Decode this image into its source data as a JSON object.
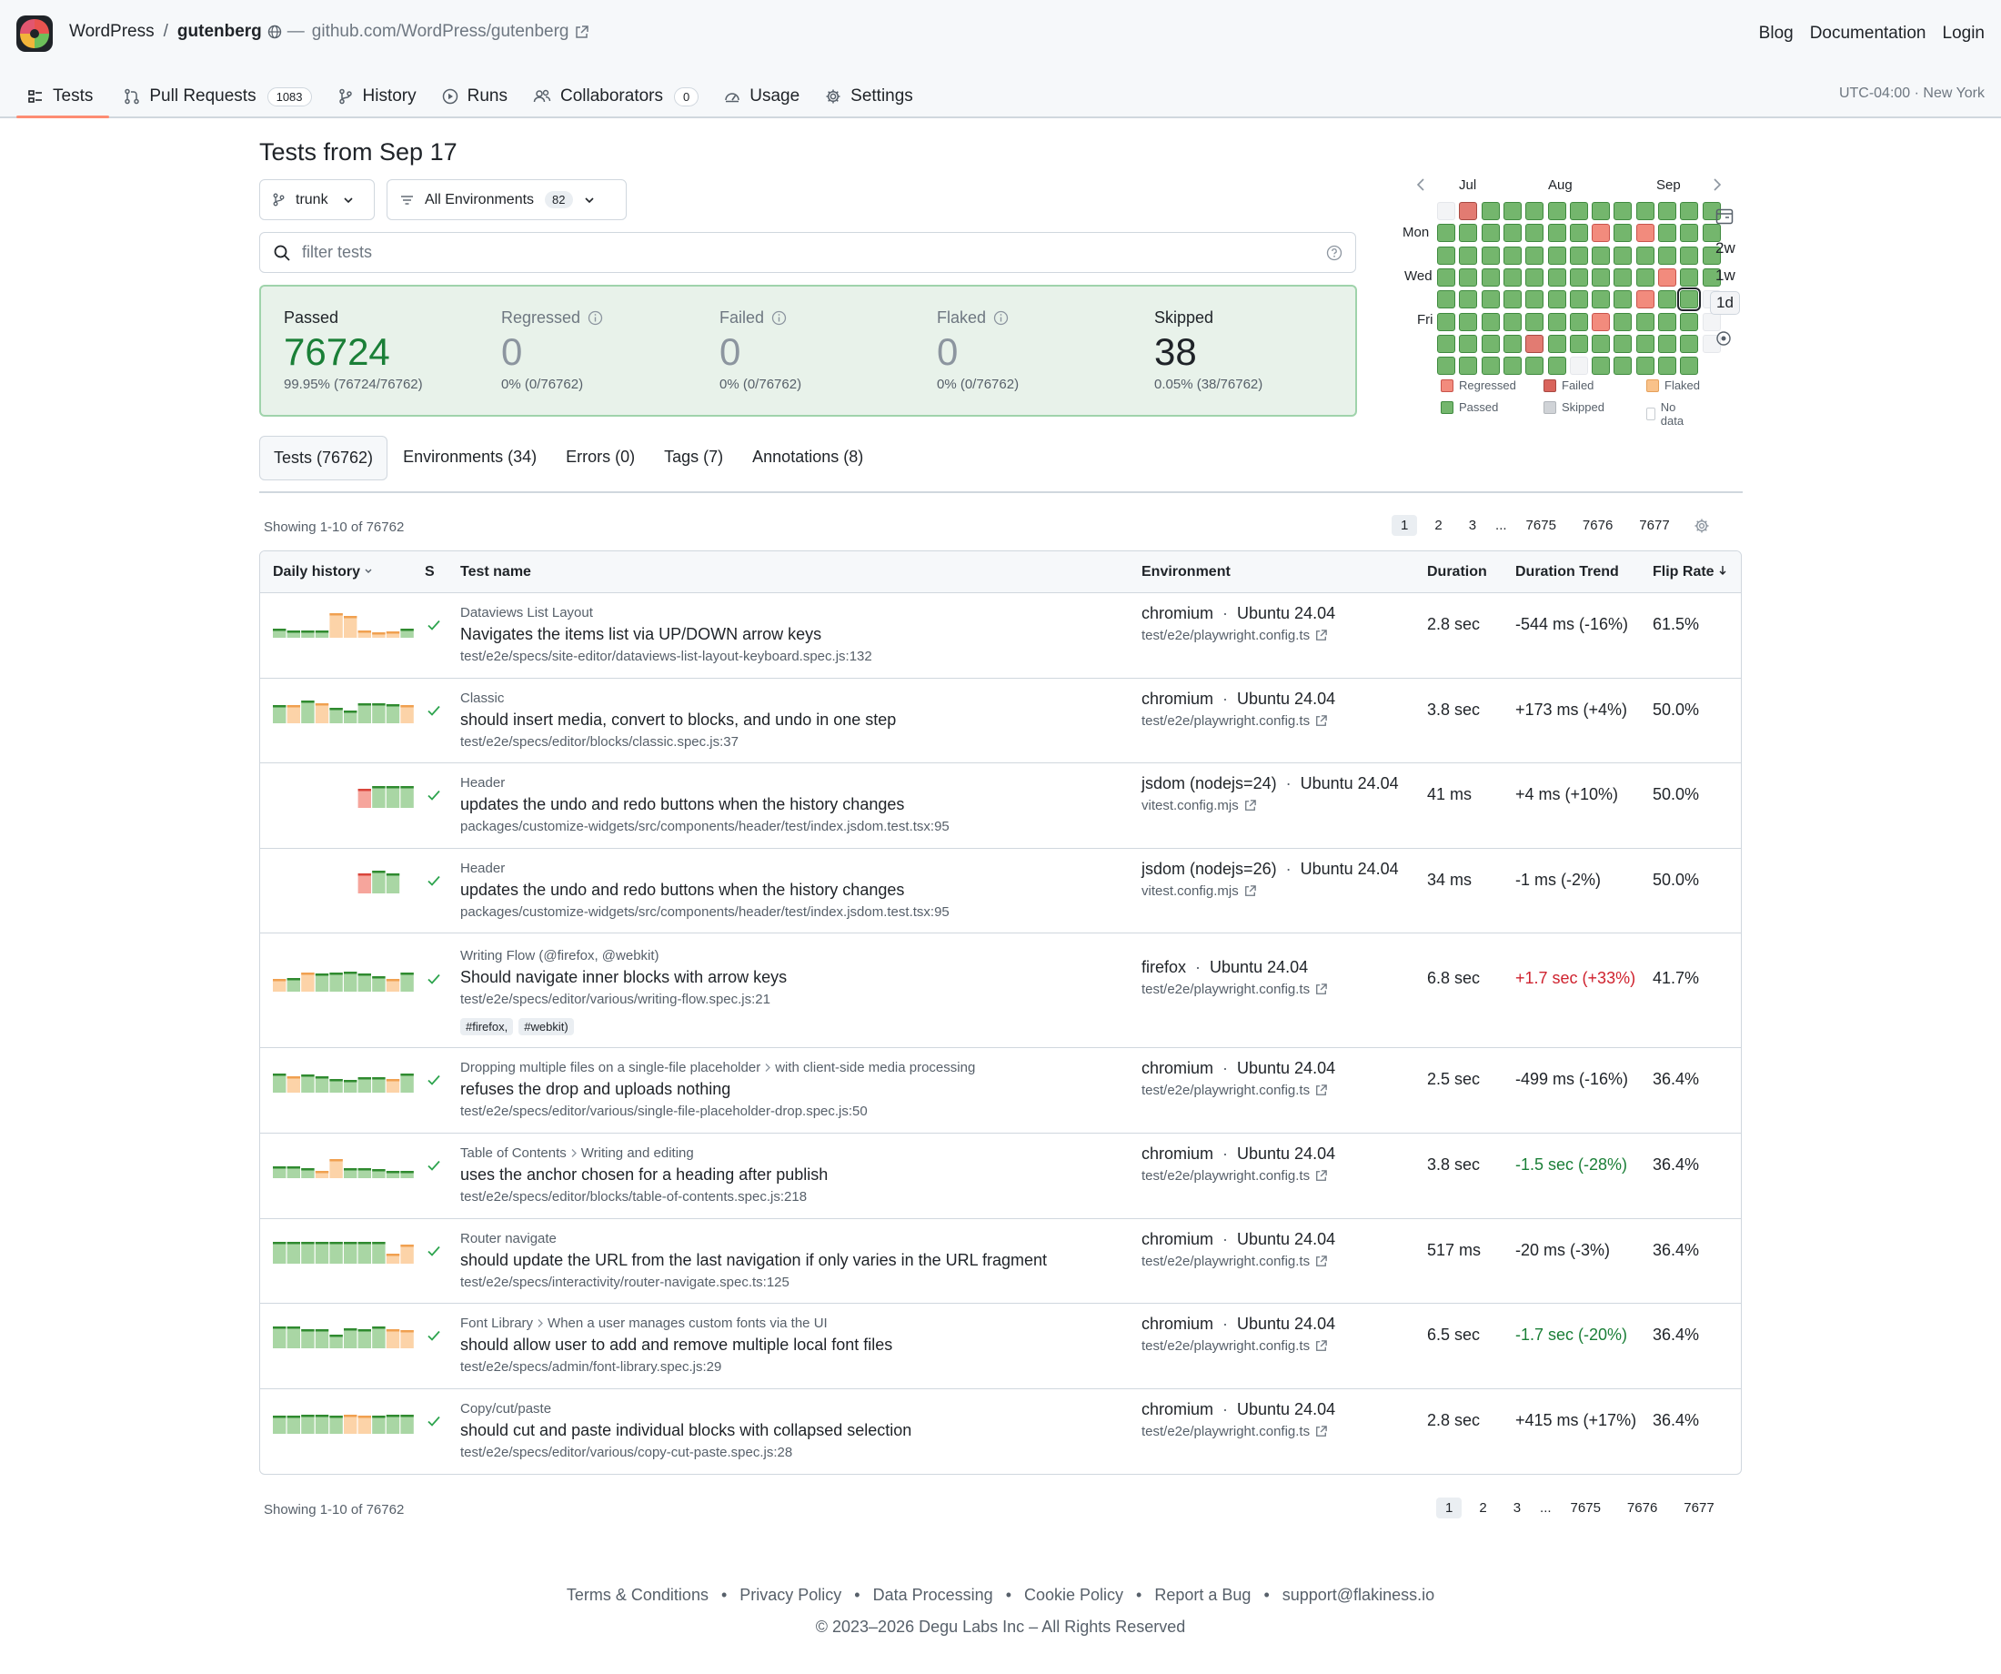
{
  "header": {
    "org": "WordPress",
    "separator": "/",
    "repo": "gutenberg",
    "dash": "—",
    "repo_url": "github.com/WordPress/gutenberg",
    "links": [
      "Blog",
      "Documentation",
      "Login"
    ]
  },
  "nav": {
    "items": [
      {
        "label": "Tests",
        "icon": "tests-icon",
        "active": true
      },
      {
        "label": "Pull Requests",
        "icon": "pull-request-icon",
        "count": "1083"
      },
      {
        "label": "History",
        "icon": "history-icon"
      },
      {
        "label": "Runs",
        "icon": "play-icon"
      },
      {
        "label": "Collaborators",
        "icon": "people-icon",
        "count": "0"
      },
      {
        "label": "Usage",
        "icon": "gauge-icon"
      },
      {
        "label": "Settings",
        "icon": "gear-icon"
      }
    ],
    "timezone": "UTC-04:00 · New York"
  },
  "main": {
    "title": "Tests from Sep 17",
    "branch": "trunk",
    "environments_label": "All Environments",
    "environments_count": "82",
    "search_placeholder": "filter tests"
  },
  "summary": {
    "passed": {
      "label": "Passed",
      "value": "76724",
      "detail": "99.95% (76724/76762)"
    },
    "regressed": {
      "label": "Regressed",
      "value": "0",
      "detail": "0% (0/76762)"
    },
    "failed": {
      "label": "Failed",
      "value": "0",
      "detail": "0% (0/76762)"
    },
    "flaked": {
      "label": "Flaked",
      "value": "0",
      "detail": "0% (0/76762)"
    },
    "skipped": {
      "label": "Skipped",
      "value": "38",
      "detail": "0.05% (38/76762)"
    }
  },
  "calendar": {
    "months": [
      "Jul",
      "Aug",
      "Sep"
    ],
    "days": [
      "Mon",
      "Wed",
      "Fri"
    ],
    "ranges": [
      "2w",
      "1w",
      "1d"
    ],
    "selected_range": "1d",
    "weeks": [
      [
        "n",
        "p",
        "p",
        "p",
        "p",
        "p",
        "p",
        "p"
      ],
      [
        "r",
        "p",
        "p",
        "p",
        "p",
        "p",
        "p",
        "p"
      ],
      [
        "p",
        "p",
        "p",
        "p",
        "p",
        "p",
        "p",
        "p"
      ],
      [
        "p",
        "p",
        "p",
        "p",
        "p",
        "p",
        "p",
        "p"
      ],
      [
        "p",
        "p",
        "p",
        "p",
        "p",
        "p",
        "r",
        "p"
      ],
      [
        "p",
        "p",
        "p",
        "p",
        "p",
        "p",
        "p",
        "p"
      ],
      [
        "p",
        "p",
        "p",
        "p",
        "p",
        "p",
        "p",
        "n"
      ],
      [
        "p",
        "f",
        "p",
        "p",
        "p",
        "f",
        "p",
        "p"
      ],
      [
        "p",
        "p",
        "p",
        "p",
        "p",
        "p",
        "p",
        "p"
      ],
      [
        "p",
        "f",
        "p",
        "p",
        "f",
        "p",
        "p",
        "p"
      ],
      [
        "p",
        "p",
        "p",
        "f",
        "p",
        "p",
        "p",
        "p"
      ],
      [
        "p",
        "p",
        "p",
        "p",
        "p",
        "p",
        "p",
        "p"
      ],
      [
        "p",
        "p",
        "p",
        "p",
        "s",
        "n",
        "n"
      ]
    ],
    "legend": [
      {
        "label": "Regressed",
        "color": "#f28b7d"
      },
      {
        "label": "Failed",
        "color": "#d9645c"
      },
      {
        "label": "Flaked",
        "color": "#f9c28a"
      },
      {
        "label": "Passed",
        "color": "#74b66d"
      },
      {
        "label": "Skipped",
        "color": "#d0d3d7"
      },
      {
        "label": "No data",
        "color": "#ffffff"
      }
    ]
  },
  "tabs": [
    "Tests (76762)",
    "Environments (34)",
    "Errors (0)",
    "Tags (7)",
    "Annotations (8)"
  ],
  "pagination": {
    "showing": "Showing 1-10 of 76762",
    "pages": [
      "1",
      "2",
      "3",
      "...",
      "7675",
      "7676",
      "7677"
    ],
    "current": "1"
  },
  "table": {
    "columns": {
      "history": "Daily history",
      "status": "S",
      "name": "Test name",
      "environment": "Environment",
      "duration": "Duration",
      "trend": "Duration Trend",
      "flip": "Flip Rate"
    },
    "rows": [
      {
        "suite": "Dataviews List Layout",
        "name": "Navigates the items list via UP/DOWN arrow keys",
        "path": "test/e2e/specs/site-editor/dataviews-list-layout-keyboard.spec.js:132",
        "env": "chromium",
        "os": "Ubuntu 24.04",
        "config": "test/e2e/playwright.config.ts",
        "duration": "2.8 sec",
        "trend": "-544 ms (-16%)",
        "trend_dir": "neutral",
        "flip": "61.5%",
        "history": [
          "p",
          "p",
          "p",
          "p",
          "k",
          "k",
          "k",
          "k",
          "k",
          "p"
        ],
        "heights": [
          0.35,
          0.3,
          0.3,
          0.3,
          0.95,
          0.85,
          0.3,
          0.2,
          0.25,
          0.35
        ]
      },
      {
        "suite": "Classic",
        "name": "should insert media, convert to blocks, and undo in one step",
        "path": "test/e2e/specs/editor/blocks/classic.spec.js:37",
        "env": "chromium",
        "os": "Ubuntu 24.04",
        "config": "test/e2e/playwright.config.ts",
        "duration": "3.8 sec",
        "trend": "+173 ms (+4%)",
        "trend_dir": "neutral",
        "flip": "50.0%",
        "history": [
          "p",
          "k",
          "p",
          "k",
          "p",
          "p",
          "p",
          "p",
          "p",
          "k"
        ],
        "heights": [
          0.7,
          0.7,
          0.9,
          0.8,
          0.6,
          0.5,
          0.8,
          0.8,
          0.75,
          0.7
        ]
      },
      {
        "suite": "Header",
        "name": "updates the undo and redo buttons when the history changes",
        "path": "packages/customize-widgets/src/components/header/test/index.jsdom.test.tsx:95",
        "env": "jsdom (nodejs=24)",
        "os": "Ubuntu 24.04",
        "config": "vitest.config.mjs",
        "duration": "41 ms",
        "trend": "+4 ms (+10%)",
        "trend_dir": "neutral",
        "flip": "50.0%",
        "history": [
          "",
          "",
          "",
          "",
          "",
          "",
          "f",
          "p",
          "p",
          "p"
        ],
        "heights": [
          0,
          0,
          0,
          0,
          0,
          0,
          0.75,
          0.85,
          0.85,
          0.85
        ]
      },
      {
        "suite": "Header",
        "name": "updates the undo and redo buttons when the history changes",
        "path": "packages/customize-widgets/src/components/header/test/index.jsdom.test.tsx:95",
        "env": "jsdom (nodejs=26)",
        "os": "Ubuntu 24.04",
        "config": "vitest.config.mjs",
        "duration": "34 ms",
        "trend": "-1 ms (-2%)",
        "trend_dir": "neutral",
        "flip": "50.0%",
        "history": [
          "",
          "",
          "",
          "",
          "",
          "",
          "f",
          "p",
          "p",
          ""
        ],
        "heights": [
          0,
          0,
          0,
          0,
          0,
          0,
          0.8,
          0.9,
          0.8,
          0
        ]
      },
      {
        "suite": "Writing Flow (@firefox, @webkit)",
        "name": "Should navigate inner blocks with arrow keys",
        "path": "test/e2e/specs/editor/various/writing-flow.spec.js:21",
        "tags": [
          "#firefox,",
          "#webkit)"
        ],
        "env": "firefox",
        "os": "Ubuntu 24.04",
        "config": "test/e2e/playwright.config.ts",
        "duration": "6.8 sec",
        "trend": "+1.7 sec (+33%)",
        "trend_dir": "up",
        "flip": "41.7%",
        "history": [
          "k",
          "p",
          "k",
          "p",
          "p",
          "p",
          "p",
          "p",
          "k",
          "p"
        ],
        "heights": [
          0.5,
          0.55,
          0.75,
          0.7,
          0.75,
          0.8,
          0.7,
          0.6,
          0.5,
          0.75
        ]
      },
      {
        "suite": "Dropping multiple files on a single-file placeholder",
        "suite2": "with client-side media processing",
        "name": "refuses the drop and uploads nothing",
        "path": "test/e2e/specs/editor/various/single-file-placeholder-drop.spec.js:50",
        "env": "chromium",
        "os": "Ubuntu 24.04",
        "config": "test/e2e/playwright.config.ts",
        "duration": "2.5 sec",
        "trend": "-499 ms (-16%)",
        "trend_dir": "neutral",
        "flip": "36.4%",
        "history": [
          "p",
          "k",
          "p",
          "p",
          "p",
          "p",
          "p",
          "p",
          "k",
          "p"
        ],
        "heights": [
          0.75,
          0.65,
          0.7,
          0.65,
          0.55,
          0.5,
          0.6,
          0.6,
          0.55,
          0.75
        ]
      },
      {
        "suite": "Table of Contents",
        "suite2": "Writing and editing",
        "name": "uses the anchor chosen for a heading after publish",
        "path": "test/e2e/specs/editor/blocks/table-of-contents.spec.js:218",
        "env": "chromium",
        "os": "Ubuntu 24.04",
        "config": "test/e2e/playwright.config.ts",
        "duration": "3.8 sec",
        "trend": "-1.5 sec (-28%)",
        "trend_dir": "down",
        "flip": "36.4%",
        "history": [
          "p",
          "p",
          "p",
          "k",
          "k",
          "p",
          "p",
          "p",
          "p",
          "p"
        ],
        "heights": [
          0.45,
          0.45,
          0.4,
          0.3,
          0.75,
          0.4,
          0.4,
          0.35,
          0.3,
          0.3
        ]
      },
      {
        "suite": "Router navigate",
        "name": "should update the URL from the last navigation if only varies in the URL fragment",
        "path": "test/e2e/specs/interactivity/router-navigate.spec.ts:125",
        "env": "chromium",
        "os": "Ubuntu 24.04",
        "config": "test/e2e/playwright.config.ts",
        "duration": "517 ms",
        "trend": "-20 ms (-3%)",
        "trend_dir": "neutral",
        "flip": "36.4%",
        "history": [
          "p",
          "p",
          "p",
          "p",
          "p",
          "p",
          "p",
          "p",
          "k",
          "k"
        ],
        "heights": [
          0.85,
          0.85,
          0.85,
          0.85,
          0.85,
          0.85,
          0.85,
          0.85,
          0.4,
          0.75
        ]
      },
      {
        "suite": "Font Library",
        "suite2": "When a user manages custom fonts via the UI",
        "name": "should allow user to add and remove multiple local font files",
        "path": "test/e2e/specs/admin/font-library.spec.js:29",
        "env": "chromium",
        "os": "Ubuntu 24.04",
        "config": "test/e2e/playwright.config.ts",
        "duration": "6.5 sec",
        "trend": "-1.7 sec (-20%)",
        "trend_dir": "down",
        "flip": "36.4%",
        "history": [
          "p",
          "p",
          "p",
          "p",
          "p",
          "p",
          "p",
          "p",
          "k",
          "k"
        ],
        "heights": [
          0.85,
          0.85,
          0.75,
          0.75,
          0.55,
          0.8,
          0.75,
          0.85,
          0.75,
          0.7
        ]
      },
      {
        "suite": "Copy/cut/paste",
        "name": "should cut and paste individual blocks with collapsed selection",
        "path": "test/e2e/specs/editor/various/copy-cut-paste.spec.js:28",
        "env": "chromium",
        "os": "Ubuntu 24.04",
        "config": "test/e2e/playwright.config.ts",
        "duration": "2.8 sec",
        "trend": "+415 ms (+17%)",
        "trend_dir": "neutral",
        "flip": "36.4%",
        "history": [
          "p",
          "p",
          "p",
          "p",
          "p",
          "k",
          "k",
          "p",
          "p",
          "p"
        ],
        "heights": [
          0.7,
          0.7,
          0.75,
          0.75,
          0.7,
          0.75,
          0.7,
          0.7,
          0.75,
          0.75
        ]
      }
    ]
  },
  "footer": {
    "links": [
      "Terms & Conditions",
      "Privacy Policy",
      "Data Processing",
      "Cookie Policy",
      "Report a Bug",
      "support@flakiness.io"
    ],
    "bullet": "•",
    "copyright": "© 2023–2026 Degu Labs Inc – All Rights Reserved"
  }
}
